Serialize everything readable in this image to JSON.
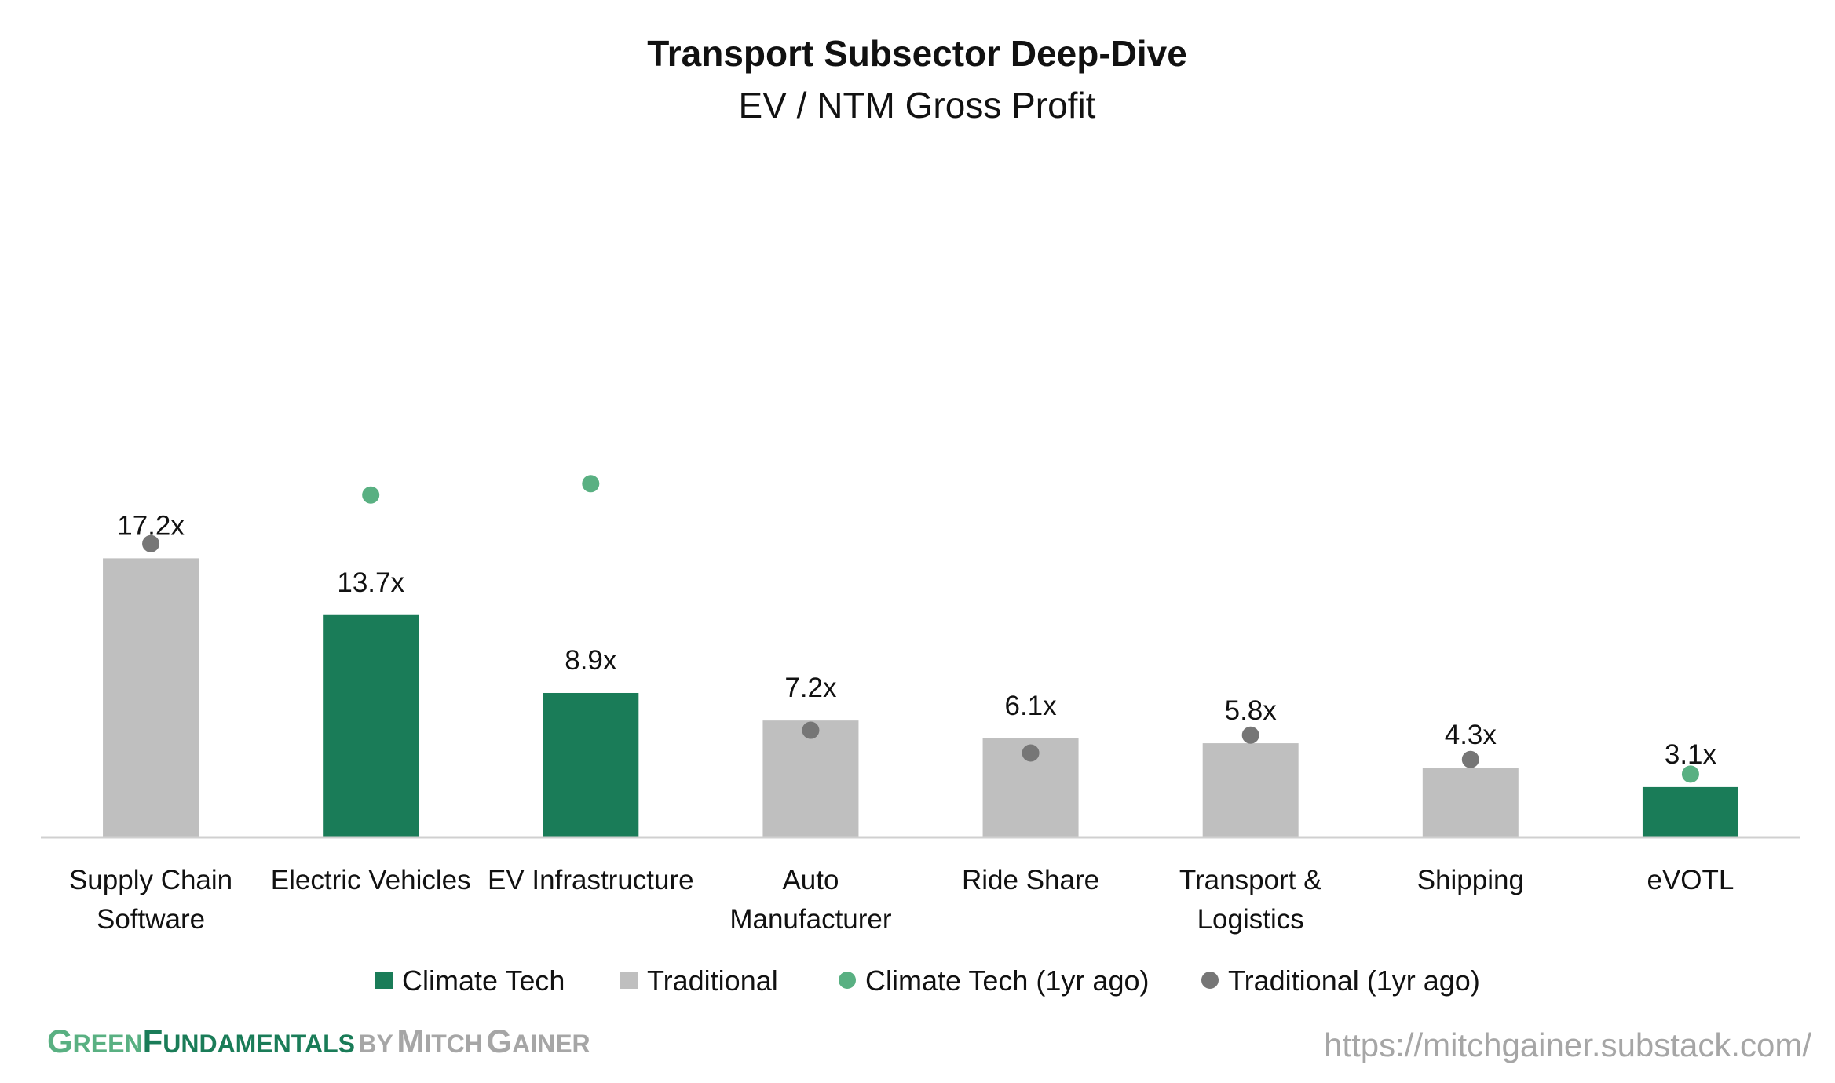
{
  "colors": {
    "climate": "#1a7c58",
    "traditional": "#bfbfbf",
    "climate_dot": "#59b082",
    "traditional_dot": "#767676",
    "axis": "#d0d0d0",
    "brand_green": "#1a7c58",
    "brand_light_green": "#59b082",
    "brand_grey": "#a6a6a6",
    "url_grey": "#a6a6a6"
  },
  "chart_data": {
    "type": "bar",
    "title": "Transport Subsector Deep-Dive",
    "subtitle": "EV / NTM Gross Profit",
    "ylim": [
      0,
      40
    ],
    "categories": [
      [
        "Supply Chain",
        "Software"
      ],
      [
        "Electric Vehicles"
      ],
      [
        "EV Infrastructure"
      ],
      [
        "Auto",
        "Manufacturer"
      ],
      [
        "Ride Share"
      ],
      [
        "Transport &",
        "Logistics"
      ],
      [
        "Shipping"
      ],
      [
        "eVOTL"
      ]
    ],
    "values": [
      17.2,
      13.7,
      8.9,
      7.2,
      6.1,
      5.8,
      4.3,
      3.1
    ],
    "value_labels": [
      "17.2x",
      "13.7x",
      "8.9x",
      "7.2x",
      "6.1x",
      "5.8x",
      "4.3x",
      "3.1x"
    ],
    "groups": [
      "Traditional",
      "Climate Tech",
      "Climate Tech",
      "Traditional",
      "Traditional",
      "Traditional",
      "Traditional",
      "Climate Tech"
    ],
    "one_year_ago": [
      18.1,
      21.1,
      21.8,
      6.6,
      5.2,
      6.3,
      4.8,
      3.9
    ],
    "legend": [
      {
        "label": "Climate Tech",
        "marker": "square",
        "color": "#1a7c58"
      },
      {
        "label": "Traditional",
        "marker": "square",
        "color": "#bfbfbf"
      },
      {
        "label": "Climate Tech (1yr ago)",
        "marker": "circle",
        "color": "#59b082"
      },
      {
        "label": "Traditional (1yr ago)",
        "marker": "circle",
        "color": "#767676"
      }
    ],
    "legend_position": "bottom",
    "grid": false
  },
  "footer": {
    "brand_green_g": "G",
    "brand_green_reen": "REEN",
    "brand_f": "F",
    "brand_undamentals": "UNDAMENTALS",
    "by": "BY",
    "author_m": "M",
    "author_itch": "ITCH",
    "author_g": "G",
    "author_ainer": "AINER",
    "url": "https://mitchgainer.substack.com/"
  }
}
